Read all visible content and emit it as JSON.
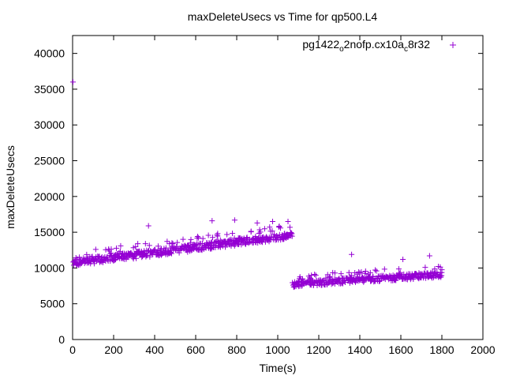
{
  "chart_data": {
    "type": "scatter",
    "title": "maxDeleteUsecs vs Time for qp500.L4",
    "xlabel": "Time(s)",
    "ylabel": "maxDeleteUsecs",
    "xlim": [
      0,
      2000
    ],
    "ylim": [
      0,
      42500
    ],
    "xticks": [
      "0",
      "200",
      "400",
      "600",
      "800",
      "1000",
      "1200",
      "1400",
      "1600",
      "1800",
      "2000"
    ],
    "yticks": [
      "0",
      "5000",
      "10000",
      "15000",
      "20000",
      "25000",
      "30000",
      "35000",
      "40000"
    ],
    "grid": false,
    "legend_position": "top-right",
    "marker": "+",
    "series": [
      {
        "name": "pg1422_o2nofp.cx10a_c8r32",
        "legend_main": "pg1422",
        "legend_sub1": "o",
        "legend_mid": "2nofp.cx10a",
        "legend_sub2": "c",
        "legend_end": "8r32",
        "color": "#9400d3",
        "outliers": [
          {
            "x": 2,
            "y": 36000
          },
          {
            "x": 370,
            "y": 15900
          },
          {
            "x": 680,
            "y": 16600
          },
          {
            "x": 790,
            "y": 16700
          },
          {
            "x": 900,
            "y": 16300
          },
          {
            "x": 975,
            "y": 16500
          },
          {
            "x": 1050,
            "y": 16500
          },
          {
            "x": 1360,
            "y": 11900
          },
          {
            "x": 1610,
            "y": 11200
          },
          {
            "x": 1740,
            "y": 11700
          }
        ],
        "segments": [
          {
            "x_start": 0,
            "x_end": 1070,
            "y_start": 10700,
            "y_end": 14600,
            "spread": 1000,
            "step": 3
          },
          {
            "x_start": 1070,
            "x_end": 1800,
            "y_start": 7700,
            "y_end": 9100,
            "spread": 800,
            "step": 3
          }
        ]
      }
    ]
  }
}
